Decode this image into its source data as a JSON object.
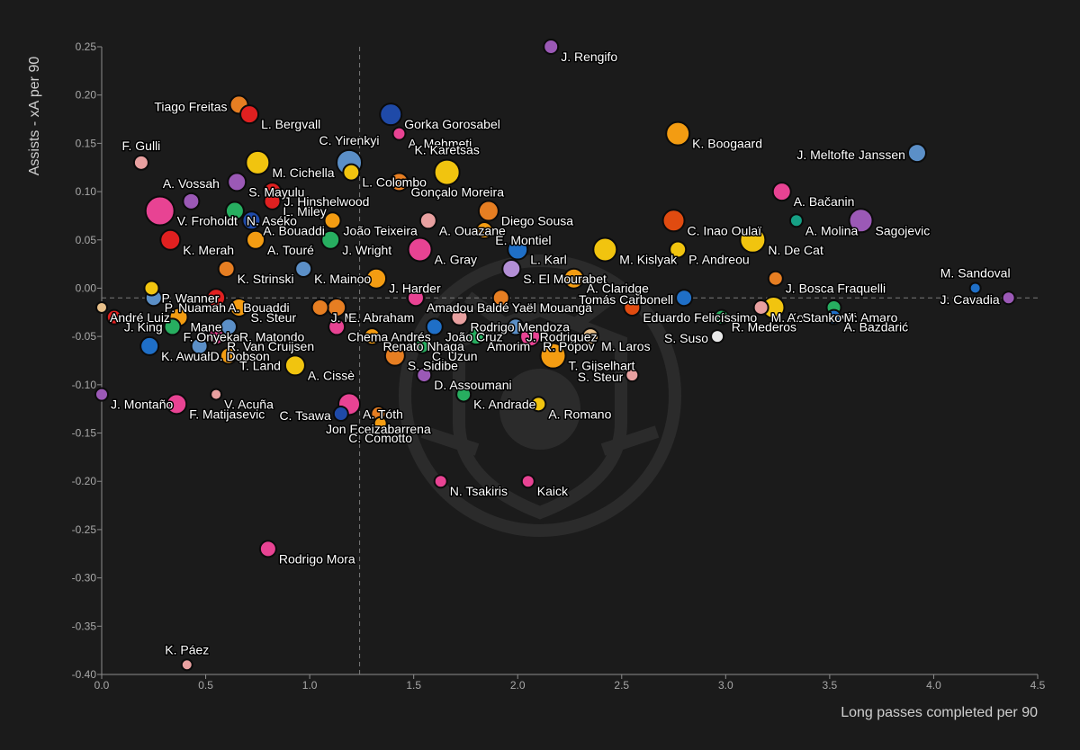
{
  "chart_data": {
    "type": "scatter",
    "title": "",
    "xlabel": "Long passes completed per 90",
    "ylabel": "Assists - xA per 90",
    "xlim": [
      0,
      4.5
    ],
    "ylim": [
      -0.4,
      0.25
    ],
    "xticks": [
      "0.0",
      "0.5",
      "1.0",
      "1.5",
      "2.0",
      "2.5",
      "3.0",
      "3.5",
      "4.0",
      "4.5"
    ],
    "yticks": [
      "0.25",
      "0.20",
      "0.15",
      "0.10",
      "0.05",
      "0.00",
      "-0.05",
      "-0.10",
      "-0.15",
      "-0.20",
      "-0.25",
      "-0.30",
      "-0.35",
      "-0.40"
    ],
    "reference_lines": {
      "x": 1.24,
      "y": -0.01
    },
    "grid": false,
    "legend": "none",
    "watermark": "shield-crest-logo",
    "colors": {
      "background": "#1b1b1b",
      "axis": "#8c8c8c",
      "text": "#ffffff",
      "tick_text": "#a8a8a8",
      "reference_line": "#7a7a7a"
    },
    "points": [
      {
        "name": "J. Rengifo",
        "x": 2.16,
        "y": 0.25,
        "size": 8,
        "color": "#9b59b6",
        "label_pos": "right"
      },
      {
        "name": "Tiago Freitas",
        "x": 0.66,
        "y": 0.19,
        "size": 10,
        "color": "#e67e22",
        "label_pos": "left"
      },
      {
        "name": "L. Bergvall",
        "x": 0.71,
        "y": 0.18,
        "size": 10,
        "color": "#e02020",
        "label_pos": "right"
      },
      {
        "name": "Gorka Gorosabel",
        "x": 1.39,
        "y": 0.18,
        "size": 12,
        "color": "#1f4aa8",
        "label_pos": "right"
      },
      {
        "name": "A. Mehmeti",
        "x": 1.43,
        "y": 0.16,
        "size": 7,
        "color": "#e84393",
        "label_pos": "right"
      },
      {
        "name": "K. Boogaard",
        "x": 2.77,
        "y": 0.16,
        "size": 13,
        "color": "#f39c12",
        "label_pos": "right"
      },
      {
        "name": "F. Gulli",
        "x": 0.19,
        "y": 0.13,
        "size": 8,
        "color": "#e8a0a0",
        "label_pos": "above"
      },
      {
        "name": "C. Yirenkyi",
        "x": 1.19,
        "y": 0.13,
        "size": 14,
        "color": "#5b8fc7",
        "label_pos": "above"
      },
      {
        "name": "M. Cichella",
        "x": 0.75,
        "y": 0.13,
        "size": 13,
        "color": "#f1c40f",
        "label_pos": "right"
      },
      {
        "name": "K. Karetsas",
        "x": 1.66,
        "y": 0.12,
        "size": 14,
        "color": "#f1c40f",
        "label_pos": "above"
      },
      {
        "name": "J. Meltofte Janssen",
        "x": 3.92,
        "y": 0.14,
        "size": 10,
        "color": "#5b8fc7",
        "label_pos": "left"
      },
      {
        "name": "L. Colombo",
        "x": 1.2,
        "y": 0.12,
        "size": 9,
        "color": "#f1c40f",
        "label_pos": "right"
      },
      {
        "name": "A. Vossah",
        "x": 0.43,
        "y": 0.09,
        "size": 9,
        "color": "#9b59b6",
        "label_pos": "above"
      },
      {
        "name": "S. Mayulu",
        "x": 0.65,
        "y": 0.11,
        "size": 10,
        "color": "#9b59b6",
        "label_pos": "right"
      },
      {
        "name": "Gonçalo Moreira",
        "x": 1.43,
        "y": 0.11,
        "size": 10,
        "color": "#e67e22",
        "label_pos": "right"
      },
      {
        "name": "A. Bačanin",
        "x": 3.27,
        "y": 0.1,
        "size": 10,
        "color": "#e84393",
        "label_pos": "right"
      },
      {
        "name": "J. Hinshelwood",
        "x": 0.82,
        "y": 0.1,
        "size": 10,
        "color": "#e02020",
        "label_pos": "right"
      },
      {
        "name": "L. Miley",
        "x": 0.82,
        "y": 0.09,
        "size": 9,
        "color": "#e02020",
        "label_pos": "right"
      },
      {
        "name": "V. Froholdt",
        "x": 0.28,
        "y": 0.08,
        "size": 16,
        "color": "#e84393",
        "label_pos": "right"
      },
      {
        "name": "N. Aséko",
        "x": 0.64,
        "y": 0.08,
        "size": 10,
        "color": "#27ae60",
        "label_pos": "right"
      },
      {
        "name": "A. Bouaddi",
        "x": 0.72,
        "y": 0.07,
        "size": 10,
        "color": "#1f4aa8",
        "label_pos": "right"
      },
      {
        "name": "João Teixeira",
        "x": 1.11,
        "y": 0.07,
        "size": 9,
        "color": "#f39c12",
        "label_pos": "right"
      },
      {
        "name": "A. Ouazane",
        "x": 1.57,
        "y": 0.07,
        "size": 9,
        "color": "#e8a0a0",
        "label_pos": "right"
      },
      {
        "name": "Diego Sousa",
        "x": 1.86,
        "y": 0.08,
        "size": 11,
        "color": "#e67e22",
        "label_pos": "right"
      },
      {
        "name": "C. Inao Oulaï",
        "x": 2.75,
        "y": 0.07,
        "size": 12,
        "color": "#e04b10",
        "label_pos": "right"
      },
      {
        "name": "A. Molina",
        "x": 3.34,
        "y": 0.07,
        "size": 7,
        "color": "#16a085",
        "label_pos": "right"
      },
      {
        "name": "Sagojevic",
        "x": 3.65,
        "y": 0.07,
        "size": 13,
        "color": "#9b59b6",
        "label_pos": "right"
      },
      {
        "name": "E. Montiel",
        "x": 1.84,
        "y": 0.06,
        "size": 9,
        "color": "#f39c12",
        "label_pos": "right"
      },
      {
        "name": "K. Merah",
        "x": 0.33,
        "y": 0.05,
        "size": 11,
        "color": "#e02020",
        "label_pos": "right"
      },
      {
        "name": "A. Touré",
        "x": 0.74,
        "y": 0.05,
        "size": 10,
        "color": "#f39c12",
        "label_pos": "right"
      },
      {
        "name": "J. Wright",
        "x": 1.1,
        "y": 0.05,
        "size": 10,
        "color": "#27ae60",
        "label_pos": "right"
      },
      {
        "name": "L. Karl",
        "x": 2.0,
        "y": 0.04,
        "size": 11,
        "color": "#1f6fc7",
        "label_pos": "right"
      },
      {
        "name": "A. Gray",
        "x": 1.53,
        "y": 0.04,
        "size": 13,
        "color": "#e84393",
        "label_pos": "right"
      },
      {
        "name": "M. Kislyak",
        "x": 2.42,
        "y": 0.04,
        "size": 13,
        "color": "#f1c40f",
        "label_pos": "right"
      },
      {
        "name": "P. Andreou",
        "x": 2.77,
        "y": 0.04,
        "size": 9,
        "color": "#f1c40f",
        "label_pos": "right"
      },
      {
        "name": "N. De Cat",
        "x": 3.13,
        "y": 0.05,
        "size": 14,
        "color": "#f1c40f",
        "label_pos": "right"
      },
      {
        "name": "K. Strinski",
        "x": 0.6,
        "y": 0.02,
        "size": 9,
        "color": "#e67e22",
        "label_pos": "right"
      },
      {
        "name": "K. Mainoo",
        "x": 0.97,
        "y": 0.02,
        "size": 9,
        "color": "#5b8fc7",
        "label_pos": "right"
      },
      {
        "name": "J. Harder",
        "x": 1.32,
        "y": 0.01,
        "size": 11,
        "color": "#f39c12",
        "label_pos": "right"
      },
      {
        "name": "S. El Mourabet",
        "x": 1.97,
        "y": 0.02,
        "size": 10,
        "color": "#b38fd6",
        "label_pos": "right"
      },
      {
        "name": "A. Claridge",
        "x": 2.27,
        "y": 0.01,
        "size": 11,
        "color": "#f39c12",
        "label_pos": "right"
      },
      {
        "name": "J. Bosca Fraquelli",
        "x": 3.24,
        "y": 0.01,
        "size": 8,
        "color": "#e67e22",
        "label_pos": "right"
      },
      {
        "name": "M. Sandoval",
        "x": 4.2,
        "y": 0.0,
        "size": 6,
        "color": "#1f6fc7",
        "label_pos": "above"
      },
      {
        "name": "P. Wanner",
        "x": 0.24,
        "y": 0.0,
        "size": 8,
        "color": "#f1c40f",
        "label_pos": "right"
      },
      {
        "name": "A. Bouaddi",
        "x": 0.55,
        "y": -0.01,
        "size": 10,
        "color": "#e02020",
        "label_pos": "right"
      },
      {
        "name": "P. Nuamah",
        "x": 0.25,
        "y": -0.01,
        "size": 9,
        "color": "#5b8fc7",
        "label_pos": "right"
      },
      {
        "name": "Amadou Baldé",
        "x": 1.51,
        "y": -0.01,
        "size": 9,
        "color": "#e84393",
        "label_pos": "right"
      },
      {
        "name": "Yaël Mouanga",
        "x": 1.92,
        "y": -0.01,
        "size": 9,
        "color": "#e67e22",
        "label_pos": "right"
      },
      {
        "name": "Tomás Carbonell",
        "x": 2.8,
        "y": -0.01,
        "size": 9,
        "color": "#1f6fc7",
        "label_pos": "left"
      },
      {
        "name": "M. Konta",
        "x": 3.17,
        "y": -0.02,
        "size": 8,
        "color": "#e8a0a0",
        "label_pos": "right"
      },
      {
        "name": "A. Stanković",
        "x": 3.23,
        "y": -0.02,
        "size": 12,
        "color": "#f1c40f",
        "label_pos": "right"
      },
      {
        "name": "J. Cavadia",
        "x": 4.36,
        "y": -0.01,
        "size": 7,
        "color": "#9b59b6",
        "label_pos": "left"
      },
      {
        "name": "J. Mi",
        "x": 1.05,
        "y": -0.02,
        "size": 9,
        "color": "#e67e22",
        "label_pos": "right"
      },
      {
        "name": "E. Abraham",
        "x": 1.13,
        "y": -0.02,
        "size": 10,
        "color": "#e67e22",
        "label_pos": "right"
      },
      {
        "name": "André Luiz",
        "x": 0.0,
        "y": -0.02,
        "size": 6,
        "color": "#e8c08a",
        "label_pos": "right"
      },
      {
        "name": "Mane",
        "x": 0.37,
        "y": -0.03,
        "size": 10,
        "color": "#f39c12",
        "label_pos": "right"
      },
      {
        "name": "S. Steur",
        "x": 0.66,
        "y": -0.02,
        "size": 10,
        "color": "#f39c12",
        "label_pos": "right"
      },
      {
        "name": "Rodrigo Mendoza",
        "x": 1.72,
        "y": -0.03,
        "size": 9,
        "color": "#e8a0a0",
        "label_pos": "right"
      },
      {
        "name": "Eduardo Felicíssimo",
        "x": 2.55,
        "y": -0.02,
        "size": 9,
        "color": "#e04b10",
        "label_pos": "right"
      },
      {
        "name": "M. Amaro",
        "x": 3.52,
        "y": -0.02,
        "size": 8,
        "color": "#27ae60",
        "label_pos": "right"
      },
      {
        "name": "J. King",
        "x": 0.06,
        "y": -0.03,
        "size": 8,
        "color": "#e02020",
        "label_pos": "right"
      },
      {
        "name": "F. Onyeka",
        "x": 0.34,
        "y": -0.04,
        "size": 9,
        "color": "#27ae60",
        "label_pos": "right"
      },
      {
        "name": "R. Matondo",
        "x": 0.61,
        "y": -0.04,
        "size": 9,
        "color": "#5b8fc7",
        "label_pos": "right"
      },
      {
        "name": "Chema Andrés",
        "x": 1.13,
        "y": -0.04,
        "size": 9,
        "color": "#e84393",
        "label_pos": "right"
      },
      {
        "name": "João Cruz",
        "x": 1.6,
        "y": -0.04,
        "size": 9,
        "color": "#1f6fc7",
        "label_pos": "right"
      },
      {
        "name": "J. Rodriguez",
        "x": 1.99,
        "y": -0.04,
        "size": 9,
        "color": "#5b8fc7",
        "label_pos": "right"
      },
      {
        "name": "R. Mederos",
        "x": 2.98,
        "y": -0.03,
        "size": 8,
        "color": "#27ae60",
        "label_pos": "right"
      },
      {
        "name": "A. Bazdarić",
        "x": 3.52,
        "y": -0.03,
        "size": 8,
        "color": "#1f6fc7",
        "label_pos": "right"
      },
      {
        "name": "Renato Nhaga",
        "x": 1.3,
        "y": -0.05,
        "size": 9,
        "color": "#f39c12",
        "label_pos": "right"
      },
      {
        "name": "Amorim",
        "x": 1.8,
        "y": -0.05,
        "size": 9,
        "color": "#27ae60",
        "label_pos": "right"
      },
      {
        "name": "S. Suso",
        "x": 2.96,
        "y": -0.05,
        "size": 7,
        "color": "#e8e8e8",
        "label_pos": "left"
      },
      {
        "name": "R. Van Cruijsen",
        "x": 0.55,
        "y": -0.05,
        "size": 9,
        "color": "#e84393",
        "label_pos": "right"
      },
      {
        "name": "R. Popov",
        "x": 2.06,
        "y": -0.05,
        "size": 11,
        "color": "#e84393",
        "label_pos": "right"
      },
      {
        "name": "M. Laros",
        "x": 2.35,
        "y": -0.05,
        "size": 9,
        "color": "#e8c08a",
        "label_pos": "right"
      },
      {
        "name": "K. Awuah",
        "x": 0.23,
        "y": -0.06,
        "size": 10,
        "color": "#1f6fc7",
        "label_pos": "right"
      },
      {
        "name": "D. Dobson",
        "x": 0.47,
        "y": -0.06,
        "size": 9,
        "color": "#5b8fc7",
        "label_pos": "right"
      },
      {
        "name": "C. Uzun",
        "x": 1.54,
        "y": -0.06,
        "size": 8,
        "color": "#27ae60",
        "label_pos": "right"
      },
      {
        "name": "T. Land",
        "x": 0.61,
        "y": -0.07,
        "size": 9,
        "color": "#f39c12",
        "label_pos": "right"
      },
      {
        "name": "T. Gijselhart",
        "x": 2.17,
        "y": -0.07,
        "size": 14,
        "color": "#f39c12",
        "label_pos": "right"
      },
      {
        "name": "A. Cissè",
        "x": 0.93,
        "y": -0.08,
        "size": 11,
        "color": "#f1c40f",
        "label_pos": "right"
      },
      {
        "name": "S. Sidibe",
        "x": 1.41,
        "y": -0.07,
        "size": 11,
        "color": "#e67e22",
        "label_pos": "right"
      },
      {
        "name": "D. Assoumani",
        "x": 1.55,
        "y": -0.09,
        "size": 8,
        "color": "#9b59b6",
        "label_pos": "right"
      },
      {
        "name": "S. Steur",
        "x": 2.55,
        "y": -0.09,
        "size": 7,
        "color": "#e8a0a0",
        "label_pos": "left"
      },
      {
        "name": "J. Montaño",
        "x": 0.0,
        "y": -0.11,
        "size": 7,
        "color": "#9b59b6",
        "label_pos": "right"
      },
      {
        "name": "V. Acuña",
        "x": 0.55,
        "y": -0.11,
        "size": 6,
        "color": "#e8a0a0",
        "label_pos": "right"
      },
      {
        "name": "K. Andrade",
        "x": 1.74,
        "y": -0.11,
        "size": 8,
        "color": "#27ae60",
        "label_pos": "right"
      },
      {
        "name": "F. Matijasevic",
        "x": 0.36,
        "y": -0.12,
        "size": 11,
        "color": "#e84393",
        "label_pos": "right"
      },
      {
        "name": "A. Tóth",
        "x": 1.19,
        "y": -0.12,
        "size": 12,
        "color": "#e84393",
        "label_pos": "right"
      },
      {
        "name": "A. Romano",
        "x": 2.1,
        "y": -0.12,
        "size": 8,
        "color": "#f1c40f",
        "label_pos": "right"
      },
      {
        "name": "C. Tsawa",
        "x": 1.15,
        "y": -0.13,
        "size": 8,
        "color": "#1f4aa8",
        "label_pos": "left"
      },
      {
        "name": "Jon Eceizabarrena",
        "x": 1.33,
        "y": -0.13,
        "size": 8,
        "color": "#e67e22",
        "label_pos": "below"
      },
      {
        "name": "C. Comotto",
        "x": 1.34,
        "y": -0.14,
        "size": 7,
        "color": "#f39c12",
        "label_pos": "below"
      },
      {
        "name": "N. Tsakiris",
        "x": 1.63,
        "y": -0.2,
        "size": 7,
        "color": "#e84393",
        "label_pos": "right"
      },
      {
        "name": "Kaick",
        "x": 2.05,
        "y": -0.2,
        "size": 7,
        "color": "#e84393",
        "label_pos": "right"
      },
      {
        "name": "Rodrigo Mora",
        "x": 0.8,
        "y": -0.27,
        "size": 9,
        "color": "#e84393",
        "label_pos": "right"
      },
      {
        "name": "K. Páez",
        "x": 0.41,
        "y": -0.39,
        "size": 6,
        "color": "#e8a0a0",
        "label_pos": "above"
      }
    ]
  }
}
